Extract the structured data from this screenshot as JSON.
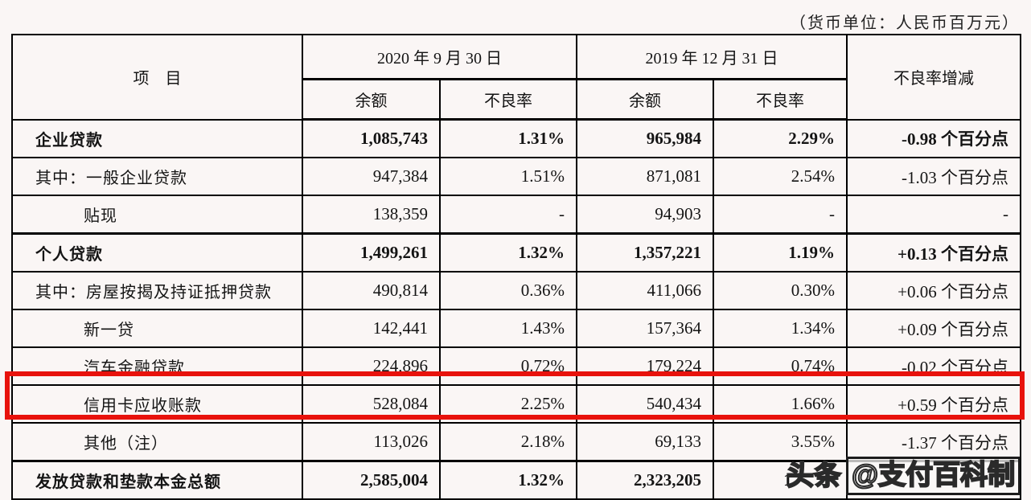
{
  "unit_note": "（货币单位：人民币百万元）",
  "table": {
    "headers": {
      "item": "项　目",
      "date_2020": "2020 年 9 月 30 日",
      "date_2019": "2019 年 12 月 31 日",
      "balance_2020": "余额",
      "npl_2020": "不良率",
      "balance_2019": "余额",
      "npl_2019": "不良率",
      "npl_change": "不良率增减"
    },
    "rows": [
      {
        "label": "企业贷款",
        "bold": true,
        "values": [
          "1,085,743",
          "1.31%",
          "965,984",
          "2.29%",
          "-0.98 个百分点"
        ]
      },
      {
        "label": "其中：一般企业贷款",
        "values": [
          "947,384",
          "1.51%",
          "871,081",
          "2.54%",
          "-1.03 个百分点"
        ]
      },
      {
        "label": "贴现",
        "indent": "sub",
        "values": [
          "138,359",
          "-",
          "94,903",
          "-",
          "-"
        ]
      },
      {
        "label": "个人贷款",
        "bold": true,
        "section": true,
        "values": [
          "1,499,261",
          "1.32%",
          "1,357,221",
          "1.19%",
          "+0.13 个百分点"
        ]
      },
      {
        "label": "其中：房屋按揭及持证抵押贷款",
        "values": [
          "490,814",
          "0.36%",
          "411,066",
          "0.30%",
          "+0.06 个百分点"
        ]
      },
      {
        "label": "新一贷",
        "indent": "sub",
        "values": [
          "142,441",
          "1.43%",
          "157,364",
          "1.34%",
          "+0.09 个百分点"
        ]
      },
      {
        "label": "汽车金融贷款",
        "indent": "sub",
        "values": [
          "224,896",
          "0.72%",
          "179,224",
          "0.74%",
          "-0.02 个百分点"
        ]
      },
      {
        "label": "信用卡应收账款",
        "indent": "sub",
        "highlighted": true,
        "values": [
          "528,084",
          "2.25%",
          "540,434",
          "1.66%",
          "+0.59 个百分点"
        ]
      },
      {
        "label": "其他（注）",
        "indent": "sub",
        "values": [
          "113,026",
          "2.18%",
          "69,133",
          "3.55%",
          "-1.37 个百分点"
        ]
      },
      {
        "label": "发放贷款和垫款本金总额",
        "bold": true,
        "section": true,
        "total": true,
        "values": [
          "2,585,004",
          "1.32%",
          "2,323,205",
          "1.",
          ""
        ]
      }
    ]
  },
  "highlight": {
    "color": "#e8120c"
  },
  "watermark": {
    "prefix": "头条",
    "handle": "@支付百科制"
  }
}
